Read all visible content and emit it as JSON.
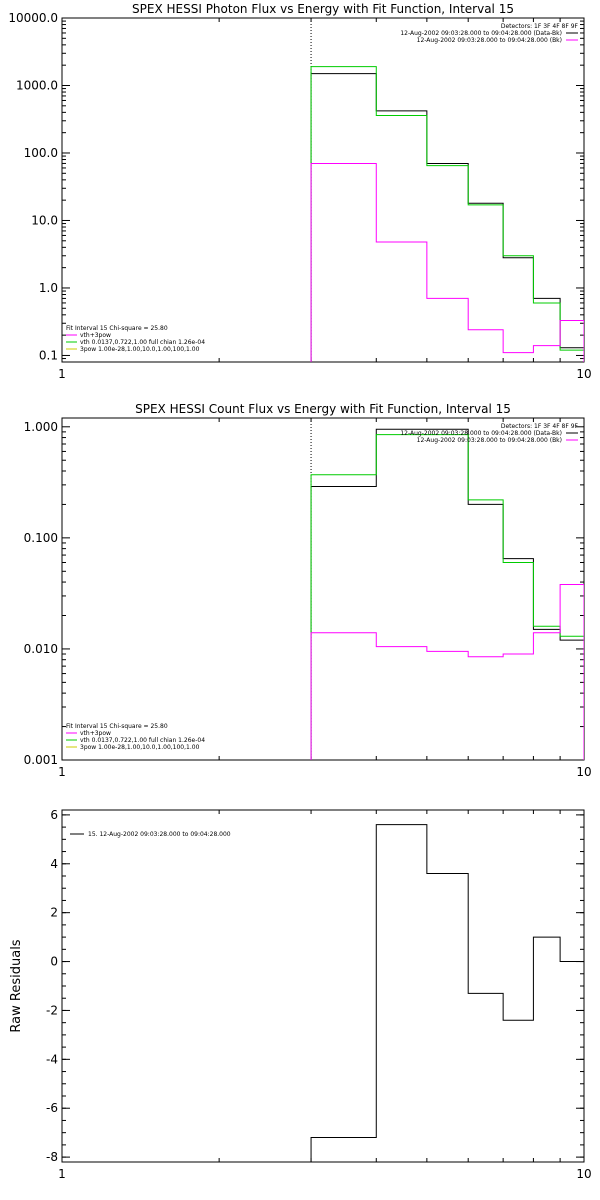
{
  "chart_data": [
    {
      "type": "line",
      "title": "SPEX HESSI Photon Flux vs Energy with Fit Function, Interval 15",
      "xlabel": "",
      "ylabel": "",
      "x_scale": "log",
      "y_scale": "log",
      "xlim": [
        1,
        10
      ],
      "ylim": [
        0.08,
        10000
      ],
      "x_ticks": [
        1,
        10
      ],
      "x_tick_labels": [
        "1",
        "10"
      ],
      "y_ticks": [
        0.1,
        1,
        10,
        100,
        1000,
        10000
      ],
      "y_tick_labels": [
        "0.1",
        "1.0",
        "10.0",
        "100.0",
        "1000.0",
        "10000.0"
      ],
      "marker_line_x": 3,
      "bin_edges": [
        3,
        4,
        5,
        6,
        7,
        8,
        9,
        10
      ],
      "legend_top_right": [
        "Detectors: 1F 3F 4F 8F 9F",
        "12-Aug-2002 09:03:28.000 to 09:04:28.000 (Data-Bk)",
        "12-Aug-2002 09:03:28.000 to 09:04:28.000 (Bk)"
      ],
      "legend_bottom_left": [
        "Fit Interval 15    Chi-square = 25.80",
        "vth+3pow",
        "vth 0.0137,0.722,1.00  full chian 1.26e-04",
        "3pow 1.00e-28,1.00,10.0,1.00,100,1.00"
      ],
      "series": [
        {
          "color": "#000000",
          "values": [
            1500,
            420,
            70,
            18,
            2.8,
            0.7,
            0.13
          ]
        },
        {
          "color": "#00cc00",
          "values": [
            1900,
            360,
            65,
            17,
            3.0,
            0.6,
            0.12
          ]
        },
        {
          "color": "#ff00ff",
          "values": [
            70,
            4.8,
            0.7,
            0.24,
            0.11,
            0.14,
            0.33
          ]
        }
      ]
    },
    {
      "type": "line",
      "title": "SPEX HESSI Count Flux vs Energy with Fit Function, Interval 15",
      "xlabel": "",
      "ylabel": "",
      "x_scale": "log",
      "y_scale": "log",
      "xlim": [
        1,
        10
      ],
      "ylim": [
        0.001,
        1.2
      ],
      "x_ticks": [
        1,
        10
      ],
      "x_tick_labels": [
        "1",
        "10"
      ],
      "y_ticks": [
        0.001,
        0.01,
        0.1,
        1
      ],
      "y_tick_labels": [
        "0.001",
        "0.010",
        "0.100",
        "1.000"
      ],
      "marker_line_x": 3,
      "bin_edges": [
        3,
        4,
        5,
        6,
        7,
        8,
        9,
        10
      ],
      "legend_top_right": [
        "Detectors: 1F 3F 4F 8F 9F",
        "12-Aug-2002 09:03:28.000 to 09:04:28.000 (Data-Bk)",
        "12-Aug-2002 09:03:28.000 to 09:04:28.000 (Bk)"
      ],
      "legend_bottom_left": [
        "Fit Interval 15    Chi-square = 25.80",
        "vth+3pow",
        "vth 0.0137,0.722,1.00  full chian 1.26e-04",
        "3pow 1.00e-28,1.00,10.0,1.00,100,1.00"
      ],
      "series": [
        {
          "color": "#000000",
          "values": [
            0.29,
            0.95,
            0.95,
            0.2,
            0.065,
            0.015,
            0.012
          ]
        },
        {
          "color": "#00cc00",
          "values": [
            0.37,
            0.85,
            0.85,
            0.22,
            0.06,
            0.016,
            0.013
          ]
        },
        {
          "color": "#ff00ff",
          "values": [
            0.014,
            0.0105,
            0.0095,
            0.0085,
            0.009,
            0.014,
            0.038
          ]
        }
      ]
    },
    {
      "type": "line",
      "title": "",
      "xlabel": "",
      "ylabel": "Raw Residuals",
      "x_scale": "log",
      "y_scale": "linear",
      "xlim": [
        1,
        10
      ],
      "ylim": [
        -8.2,
        6.2
      ],
      "x_ticks": [
        1,
        10
      ],
      "x_tick_labels": [
        "1",
        "10"
      ],
      "y_ticks": [
        -8,
        -6,
        -4,
        -2,
        0,
        2,
        4,
        6
      ],
      "y_tick_labels": [
        "-8",
        "-6",
        "-4",
        "-2",
        "0",
        "2",
        "4",
        "6"
      ],
      "bin_edges": [
        3,
        4,
        5,
        6,
        7,
        8,
        9,
        10
      ],
      "legend": [
        "15. 12-Aug-2002 09:03:28.000 to 09:04:28.000"
      ],
      "series": [
        {
          "color": "#000000",
          "values": [
            -7.2,
            5.6,
            3.6,
            -1.3,
            -2.4,
            1.0,
            0.0
          ]
        }
      ]
    }
  ]
}
